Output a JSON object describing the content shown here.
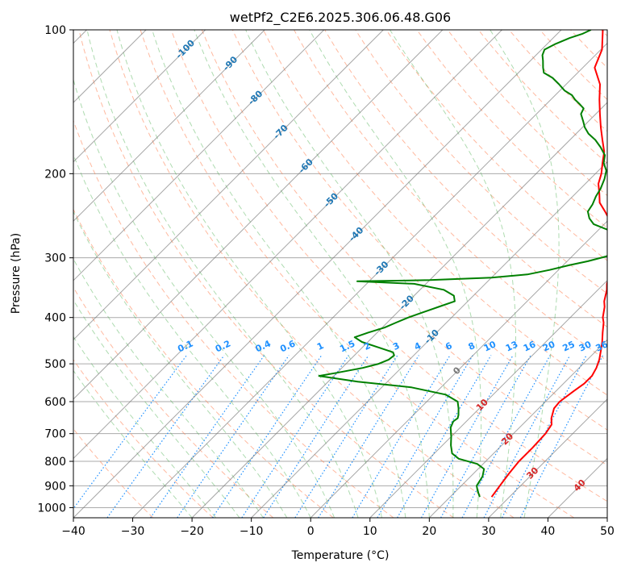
{
  "chart_data": {
    "type": "line",
    "subtype": "skew-T log-p diagram",
    "title": "wetPf2_C2E6.2025.306.06.48.G06",
    "xlabel": "Temperature (°C)",
    "ylabel": "Pressure (hPa)",
    "xlim": [
      -40,
      50
    ],
    "ylim": [
      1050,
      100
    ],
    "x_ticks": [
      "−40",
      "−30",
      "−20",
      "−10",
      "0",
      "10",
      "20",
      "30",
      "40",
      "50"
    ],
    "y_ticks": [
      {
        "p": 100,
        "label": "100"
      },
      {
        "p": 200,
        "label": "200"
      },
      {
        "p": 300,
        "label": "300"
      },
      {
        "p": 400,
        "label": "400"
      },
      {
        "p": 500,
        "label": "500"
      },
      {
        "p": 600,
        "label": "600"
      },
      {
        "p": 700,
        "label": "700"
      },
      {
        "p": 800,
        "label": "800"
      },
      {
        "p": 900,
        "label": "900"
      },
      {
        "p": 1000,
        "label": "1000"
      }
    ],
    "colors": {
      "temperature": "#ff0000",
      "dewpoint": "#008000",
      "dry_adiabat": "#ff7f50",
      "moist_adiabat": "#4caf50",
      "mixing_ratio": "#1e90ff",
      "isotherm": "#777777",
      "isotherm_label_cold": "#1f77b4",
      "isotherm_label_zero": "#777777",
      "isotherm_label_warm": "#d62728"
    },
    "series": [
      {
        "name": "Temperature",
        "points": [
          [
            27.0,
            950
          ],
          [
            26.5,
            900
          ],
          [
            26.0,
            850
          ],
          [
            25.6,
            800
          ],
          [
            25.6,
            750
          ],
          [
            25.4,
            700
          ],
          [
            24.9,
            670
          ],
          [
            23.8,
            650
          ],
          [
            22.6,
            620
          ],
          [
            22.4,
            600
          ],
          [
            23.0,
            570
          ],
          [
            23.5,
            550
          ],
          [
            23.5,
            530
          ],
          [
            22.9,
            510
          ],
          [
            22.0,
            490
          ],
          [
            20.8,
            470
          ],
          [
            19.5,
            450
          ],
          [
            18.0,
            430
          ],
          [
            16.5,
            410
          ],
          [
            15.5,
            400
          ],
          [
            14.0,
            380
          ],
          [
            13.0,
            370
          ],
          [
            11.5,
            350
          ],
          [
            10.5,
            340
          ],
          [
            9.0,
            320
          ],
          [
            7.4,
            300
          ],
          [
            6.0,
            290
          ],
          [
            4.6,
            280
          ],
          [
            3.0,
            270
          ],
          [
            1.6,
            260
          ],
          [
            0.2,
            250
          ],
          [
            -2.0,
            240
          ],
          [
            -4.4,
            230
          ],
          [
            -6.0,
            220
          ],
          [
            -7.8,
            210
          ],
          [
            -9.0,
            200
          ],
          [
            -10.6,
            190
          ],
          [
            -12.2,
            180
          ],
          [
            -14.5,
            170
          ],
          [
            -16.9,
            160
          ],
          [
            -19.3,
            150
          ],
          [
            -21.8,
            140
          ],
          [
            -24.3,
            130
          ],
          [
            -28.0,
            120
          ],
          [
            -29.8,
            110
          ],
          [
            -33.0,
            100
          ]
        ]
      },
      {
        "name": "Dewpoint",
        "points": [
          [
            25.0,
            950
          ],
          [
            23.5,
            920
          ],
          [
            22.6,
            900
          ],
          [
            22.0,
            860
          ],
          [
            21.0,
            830
          ],
          [
            19.0,
            810
          ],
          [
            15.0,
            790
          ],
          [
            13.0,
            770
          ],
          [
            11.4,
            740
          ],
          [
            10.0,
            710
          ],
          [
            8.4,
            680
          ],
          [
            7.8,
            660
          ],
          [
            8.0,
            650
          ],
          [
            7.6,
            640
          ],
          [
            6.5,
            620
          ],
          [
            5.2,
            600
          ],
          [
            2.0,
            580
          ],
          [
            -5.0,
            560
          ],
          [
            -15.0,
            545
          ],
          [
            -22.5,
            530
          ],
          [
            -20.0,
            522
          ],
          [
            -16.5,
            510
          ],
          [
            -14.5,
            500
          ],
          [
            -13.5,
            490
          ],
          [
            -13.3,
            480
          ],
          [
            -14.0,
            473
          ],
          [
            -17.0,
            463
          ],
          [
            -21.0,
            450
          ],
          [
            -23.0,
            440
          ],
          [
            -21.5,
            430
          ],
          [
            -19.6,
            420
          ],
          [
            -18.5,
            410
          ],
          [
            -17.3,
            400
          ],
          [
            -15.7,
            390
          ],
          [
            -14.0,
            380
          ],
          [
            -12.2,
            370
          ],
          [
            -13.3,
            360
          ],
          [
            -16.0,
            350
          ],
          [
            -22.0,
            340
          ],
          [
            -32.0,
            336
          ],
          [
            -20.0,
            334
          ],
          [
            -10.0,
            330
          ],
          [
            -4.5,
            325
          ],
          [
            -1.5,
            318
          ],
          [
            1.0,
            311
          ],
          [
            3.5,
            305
          ],
          [
            5.8,
            298
          ],
          [
            6.6,
            290
          ],
          [
            5.9,
            280
          ],
          [
            4.0,
            270
          ],
          [
            1.5,
            262
          ],
          [
            -1.8,
            255
          ],
          [
            -3.5,
            248
          ],
          [
            -4.9,
            240
          ],
          [
            -5.3,
            232
          ],
          [
            -6.1,
            223
          ],
          [
            -6.6,
            215
          ],
          [
            -7.6,
            205
          ],
          [
            -8.7,
            197
          ],
          [
            -10.4,
            190
          ],
          [
            -11.5,
            183
          ],
          [
            -13.6,
            176
          ],
          [
            -15.7,
            170
          ],
          [
            -17.9,
            165
          ],
          [
            -19.6,
            160
          ],
          [
            -21.0,
            155
          ],
          [
            -22.5,
            150
          ],
          [
            -23.0,
            146
          ],
          [
            -24.4,
            143
          ],
          [
            -25.9,
            140
          ],
          [
            -27.2,
            137
          ],
          [
            -29.2,
            134
          ],
          [
            -31.2,
            130
          ],
          [
            -33.4,
            126
          ],
          [
            -35.7,
            123
          ],
          [
            -36.7,
            120
          ],
          [
            -37.9,
            116
          ],
          [
            -38.9,
            113
          ],
          [
            -39.5,
            110
          ],
          [
            -38.6,
            107
          ],
          [
            -37.2,
            104
          ],
          [
            -35.8,
            102
          ],
          [
            -35.0,
            100
          ]
        ]
      }
    ],
    "isotherm_labels": [
      "-100",
      "-90",
      "-80",
      "-70",
      "-60",
      "-50",
      "-40",
      "-30",
      "-20",
      "-10",
      "0",
      "10",
      "20",
      "30",
      "40"
    ],
    "mixing_ratio_labels": [
      "0.1",
      "0.2",
      "0.4",
      "0.6",
      "1",
      "1.5",
      "2",
      "3",
      "4",
      "6",
      "8",
      "10",
      "13",
      "16",
      "20",
      "25",
      "30",
      "36"
    ]
  }
}
